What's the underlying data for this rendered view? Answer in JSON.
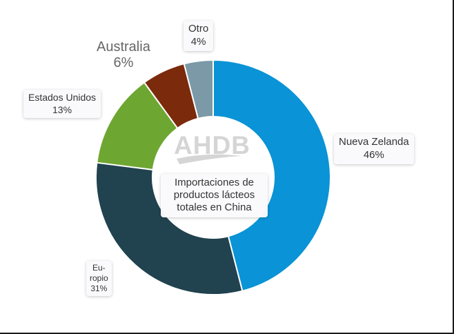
{
  "chart_data": {
    "type": "donut",
    "center_label": "Importaciones de productos lácteos totales en China",
    "categories": [
      "Nueva Zelanda",
      "Europio",
      "Estados Unidos",
      "Australia",
      "Otro"
    ],
    "values": [
      46,
      31,
      13,
      6,
      4
    ],
    "colors": [
      "#0a93d6",
      "#21424f",
      "#6ea632",
      "#7b2a0c",
      "#7b99a6"
    ],
    "labels": [
      {
        "lines": [
          "Nueva Zelanda",
          "46%"
        ]
      },
      {
        "lines": [
          "Eu-",
          "ropio",
          "31%"
        ]
      },
      {
        "lines": [
          "Estados Unidos",
          "13%"
        ]
      },
      {
        "lines": [
          "Australia",
          "6%"
        ]
      },
      {
        "lines": [
          "Otro",
          "4%"
        ]
      }
    ]
  },
  "watermark": {
    "text": "AHDB"
  }
}
